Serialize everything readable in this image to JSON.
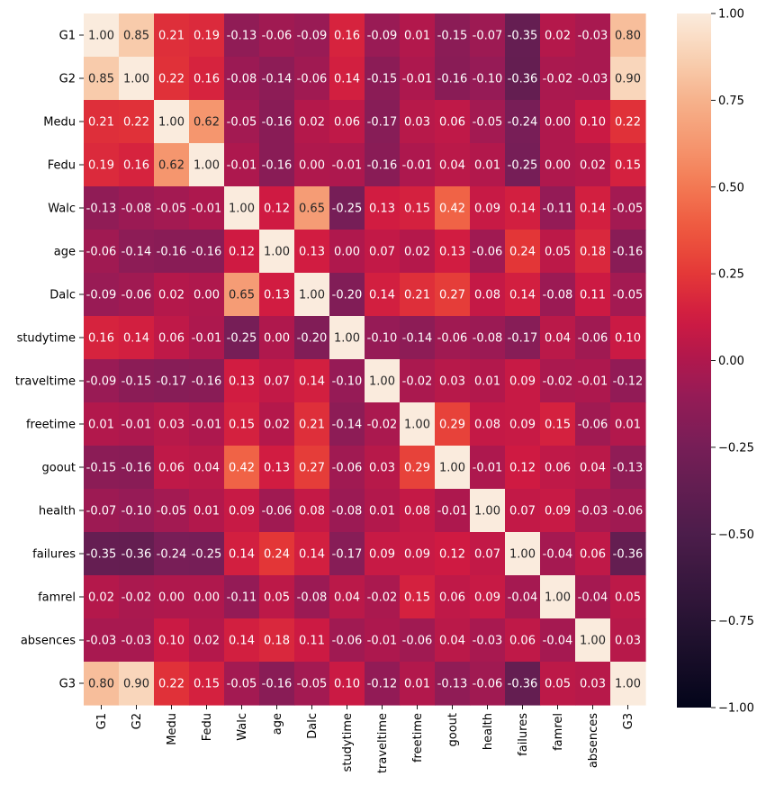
{
  "chart_data": {
    "type": "heatmap",
    "title": "",
    "xlabel": "",
    "ylabel": "",
    "labels": [
      "G1",
      "G2",
      "Medu",
      "Fedu",
      "Walc",
      "age",
      "Dalc",
      "studytime",
      "traveltime",
      "freetime",
      "goout",
      "health",
      "failures",
      "famrel",
      "absences",
      "G3"
    ],
    "matrix": [
      [
        1.0,
        0.85,
        0.21,
        0.19,
        -0.13,
        -0.06,
        -0.09,
        0.16,
        -0.09,
        0.01,
        -0.15,
        -0.07,
        -0.35,
        0.02,
        -0.03,
        0.8
      ],
      [
        0.85,
        1.0,
        0.22,
        0.16,
        -0.08,
        -0.14,
        -0.06,
        0.14,
        -0.15,
        -0.01,
        -0.16,
        -0.1,
        -0.36,
        -0.02,
        -0.03,
        0.9
      ],
      [
        0.21,
        0.22,
        1.0,
        0.62,
        -0.05,
        -0.16,
        0.02,
        0.06,
        -0.17,
        0.03,
        0.06,
        -0.05,
        -0.24,
        -0.0,
        0.1,
        0.22
      ],
      [
        0.19,
        0.16,
        0.62,
        1.0,
        -0.01,
        -0.16,
        0.0,
        -0.01,
        -0.16,
        -0.01,
        0.04,
        0.01,
        -0.25,
        -0.0,
        0.02,
        0.15
      ],
      [
        -0.13,
        -0.08,
        -0.05,
        -0.01,
        1.0,
        0.12,
        0.65,
        -0.25,
        0.13,
        0.15,
        0.42,
        0.09,
        0.14,
        -0.11,
        0.14,
        -0.05
      ],
      [
        -0.06,
        -0.14,
        -0.16,
        -0.16,
        0.12,
        1.0,
        0.13,
        -0.0,
        0.07,
        0.02,
        0.13,
        -0.06,
        0.24,
        0.05,
        0.18,
        -0.16
      ],
      [
        -0.09,
        -0.06,
        0.02,
        0.0,
        0.65,
        0.13,
        1.0,
        -0.2,
        0.14,
        0.21,
        0.27,
        0.08,
        0.14,
        -0.08,
        0.11,
        -0.05
      ],
      [
        0.16,
        0.14,
        0.06,
        -0.01,
        -0.25,
        -0.0,
        -0.2,
        1.0,
        -0.1,
        -0.14,
        -0.06,
        -0.08,
        -0.17,
        0.04,
        -0.06,
        0.1
      ],
      [
        -0.09,
        -0.15,
        -0.17,
        -0.16,
        0.13,
        0.07,
        0.14,
        -0.1,
        1.0,
        -0.02,
        0.03,
        0.01,
        0.09,
        -0.02,
        -0.01,
        -0.12
      ],
      [
        0.01,
        -0.01,
        0.03,
        -0.01,
        0.15,
        0.02,
        0.21,
        -0.14,
        -0.02,
        1.0,
        0.29,
        0.08,
        0.09,
        0.15,
        -0.06,
        0.01
      ],
      [
        -0.15,
        -0.16,
        0.06,
        0.04,
        0.42,
        0.13,
        0.27,
        -0.06,
        0.03,
        0.29,
        1.0,
        -0.01,
        0.12,
        0.06,
        0.04,
        -0.13
      ],
      [
        -0.07,
        -0.1,
        -0.05,
        0.01,
        0.09,
        -0.06,
        0.08,
        -0.08,
        0.01,
        0.08,
        -0.01,
        1.0,
        0.07,
        0.09,
        -0.03,
        -0.06
      ],
      [
        -0.35,
        -0.36,
        -0.24,
        -0.25,
        0.14,
        0.24,
        0.14,
        -0.17,
        0.09,
        0.09,
        0.12,
        0.07,
        1.0,
        -0.04,
        0.06,
        -0.36
      ],
      [
        0.02,
        -0.02,
        -0.0,
        -0.0,
        -0.11,
        0.05,
        -0.08,
        0.04,
        -0.02,
        0.15,
        0.06,
        0.09,
        -0.04,
        1.0,
        -0.04,
        0.05
      ],
      [
        -0.03,
        -0.03,
        0.1,
        0.02,
        0.14,
        0.18,
        0.11,
        -0.06,
        -0.01,
        -0.06,
        0.04,
        -0.03,
        0.06,
        -0.04,
        1.0,
        0.03
      ],
      [
        0.8,
        0.9,
        0.22,
        0.15,
        -0.05,
        -0.16,
        -0.05,
        0.1,
        -0.12,
        0.01,
        -0.13,
        -0.06,
        -0.36,
        0.05,
        0.03,
        1.0
      ]
    ],
    "vmin": -1.0,
    "vmax": 1.0,
    "colormap": "rocket",
    "colorbar_ticks": [
      1.0,
      0.75,
      0.5,
      0.25,
      0.0,
      -0.25,
      -0.5,
      -0.75,
      -1.0
    ],
    "colorbar_tick_labels": [
      "1.00",
      "0.75",
      "0.50",
      "0.25",
      "0.00",
      "−0.25",
      "−0.50",
      "−0.75",
      "−1.00"
    ],
    "annotation_format": "2 decimals",
    "annotation_light_color": "#ffffff",
    "annotation_dark_color": "#262626"
  }
}
